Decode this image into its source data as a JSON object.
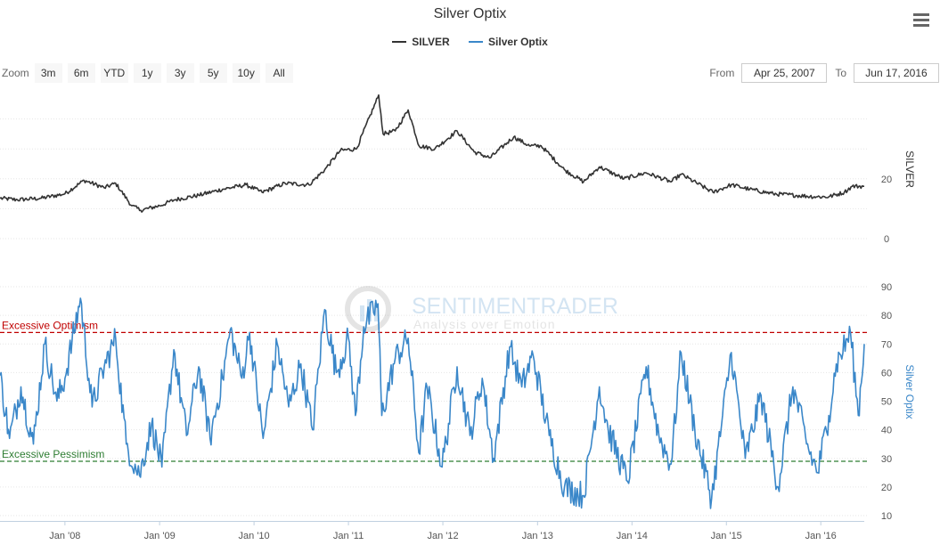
{
  "chart_title": "Silver Optix",
  "legend": [
    {
      "name": "SILVER",
      "color": "#333333"
    },
    {
      "name": "Silver Optix",
      "color": "#3a87c9"
    }
  ],
  "toolbar": {
    "zoom_label": "Zoom",
    "zoom_buttons": [
      "3m",
      "6m",
      "YTD",
      "1y",
      "3y",
      "5y",
      "10y",
      "All"
    ],
    "from_label": "From",
    "from_value": "Apr 25, 2007",
    "to_label": "To",
    "to_value": "Jun 17, 2016"
  },
  "watermark": {
    "name": "SENTIMENTRADER",
    "tagline": "Analysis over Emotion"
  },
  "chart_data": {
    "type": "line",
    "x_range": [
      "2007-04-25",
      "2016-06-17"
    ],
    "x_ticks": [
      "Jan '08",
      "Jan '09",
      "Jan '10",
      "Jan '11",
      "Jan '12",
      "Jan '13",
      "Jan '14",
      "Jan '15",
      "Jan '16"
    ],
    "panels": [
      {
        "axis_title": "SILVER",
        "y_ticks": [
          0,
          20
        ],
        "ylim": [
          0,
          50
        ],
        "series": [
          {
            "name": "SILVER",
            "color": "#333333",
            "points": [
              [
                "2007-04-25",
                13.5
              ],
              [
                "2007-07-01",
                13.0
              ],
              [
                "2007-10-01",
                13.5
              ],
              [
                "2008-01-01",
                15.0
              ],
              [
                "2008-03-15",
                19.5
              ],
              [
                "2008-06-01",
                17.0
              ],
              [
                "2008-07-15",
                18.5
              ],
              [
                "2008-09-15",
                11.0
              ],
              [
                "2008-10-20",
                9.5
              ],
              [
                "2009-01-01",
                11.0
              ],
              [
                "2009-03-01",
                13.0
              ],
              [
                "2009-06-01",
                14.5
              ],
              [
                "2009-09-01",
                16.5
              ],
              [
                "2009-12-01",
                18.0
              ],
              [
                "2010-02-01",
                15.5
              ],
              [
                "2010-05-01",
                18.5
              ],
              [
                "2010-08-01",
                18.0
              ],
              [
                "2010-10-01",
                23.0
              ],
              [
                "2010-12-01",
                29.5
              ],
              [
                "2011-02-01",
                30.0
              ],
              [
                "2011-04-28",
                48.0
              ],
              [
                "2011-05-15",
                35.0
              ],
              [
                "2011-07-01",
                36.0
              ],
              [
                "2011-08-20",
                43.0
              ],
              [
                "2011-10-01",
                31.0
              ],
              [
                "2011-12-01",
                30.0
              ],
              [
                "2012-02-25",
                36.0
              ],
              [
                "2012-05-01",
                29.0
              ],
              [
                "2012-07-01",
                27.0
              ],
              [
                "2012-10-01",
                34.0
              ],
              [
                "2012-12-01",
                31.0
              ],
              [
                "2013-01-15",
                31.0
              ],
              [
                "2013-04-15",
                23.0
              ],
              [
                "2013-06-28",
                19.0
              ],
              [
                "2013-08-28",
                24.0
              ],
              [
                "2013-12-01",
                20.0
              ],
              [
                "2014-02-25",
                22.0
              ],
              [
                "2014-06-01",
                19.0
              ],
              [
                "2014-07-10",
                21.5
              ],
              [
                "2014-11-10",
                15.5
              ],
              [
                "2015-01-20",
                18.0
              ],
              [
                "2015-04-01",
                16.5
              ],
              [
                "2015-07-01",
                15.0
              ],
              [
                "2015-12-15",
                14.0
              ],
              [
                "2016-02-01",
                14.0
              ],
              [
                "2016-04-01",
                15.5
              ],
              [
                "2016-05-01",
                17.5
              ],
              [
                "2016-06-17",
                17.5
              ]
            ]
          }
        ]
      },
      {
        "axis_title": "Silver Optix",
        "y_ticks": [
          10,
          20,
          30,
          40,
          50,
          60,
          70,
          80,
          90
        ],
        "ylim": [
          10,
          90
        ],
        "reference_lines": [
          {
            "label": "Excessive Optimism",
            "value": 74,
            "color": "#c00000"
          },
          {
            "label": "Excessive Pessimism",
            "value": 29,
            "color": "#2e7d32"
          }
        ],
        "series": [
          {
            "name": "Silver Optix",
            "color": "#3a87c9",
            "points": [
              [
                "2007-04-25",
                59
              ],
              [
                "2007-06-01",
                37
              ],
              [
                "2007-07-15",
                55
              ],
              [
                "2007-09-01",
                35
              ],
              [
                "2007-10-15",
                70
              ],
              [
                "2007-12-01",
                50
              ],
              [
                "2008-01-01",
                58
              ],
              [
                "2008-03-01",
                86
              ],
              [
                "2008-04-15",
                48
              ],
              [
                "2008-06-01",
                62
              ],
              [
                "2008-07-15",
                72
              ],
              [
                "2008-08-25",
                35
              ],
              [
                "2008-10-15",
                24
              ],
              [
                "2008-12-01",
                42
              ],
              [
                "2009-01-10",
                27
              ],
              [
                "2009-02-25",
                68
              ],
              [
                "2009-04-15",
                38
              ],
              [
                "2009-06-01",
                62
              ],
              [
                "2009-07-15",
                37
              ],
              [
                "2009-09-01",
                58
              ],
              [
                "2009-10-01",
                75
              ],
              [
                "2009-11-15",
                58
              ],
              [
                "2009-12-15",
                74
              ],
              [
                "2010-02-05",
                37
              ],
              [
                "2010-04-01",
                70
              ],
              [
                "2010-05-15",
                48
              ],
              [
                "2010-07-01",
                63
              ],
              [
                "2010-08-15",
                40
              ],
              [
                "2010-10-01",
                82
              ],
              [
                "2010-11-15",
                60
              ],
              [
                "2011-01-01",
                72
              ],
              [
                "2011-01-28",
                45
              ],
              [
                "2011-03-01",
                76
              ],
              [
                "2011-04-25",
                84
              ],
              [
                "2011-05-10",
                45
              ],
              [
                "2011-07-01",
                65
              ],
              [
                "2011-08-20",
                72
              ],
              [
                "2011-09-30",
                32
              ],
              [
                "2011-11-01",
                55
              ],
              [
                "2011-12-29",
                27
              ],
              [
                "2012-02-25",
                62
              ],
              [
                "2012-04-15",
                38
              ],
              [
                "2012-06-01",
                58
              ],
              [
                "2012-07-15",
                30
              ],
              [
                "2012-09-15",
                69
              ],
              [
                "2012-11-01",
                55
              ],
              [
                "2012-12-15",
                66
              ],
              [
                "2013-02-15",
                38
              ],
              [
                "2013-04-15",
                20
              ],
              [
                "2013-06-28",
                17
              ],
              [
                "2013-08-28",
                55
              ],
              [
                "2013-10-01",
                40
              ],
              [
                "2013-12-15",
                22
              ],
              [
                "2014-02-25",
                62
              ],
              [
                "2014-04-15",
                38
              ],
              [
                "2014-06-01",
                28
              ],
              [
                "2014-07-10",
                67
              ],
              [
                "2014-09-01",
                40
              ],
              [
                "2014-11-05",
                16
              ],
              [
                "2015-01-20",
                67
              ],
              [
                "2015-03-15",
                30
              ],
              [
                "2015-05-15",
                52
              ],
              [
                "2015-07-20",
                20
              ],
              [
                "2015-09-15",
                55
              ],
              [
                "2015-11-15",
                33
              ],
              [
                "2015-12-20",
                25
              ],
              [
                "2016-02-01",
                45
              ],
              [
                "2016-03-01",
                63
              ],
              [
                "2016-04-25",
                74
              ],
              [
                "2016-05-25",
                45
              ],
              [
                "2016-06-17",
                70
              ]
            ]
          }
        ]
      }
    ]
  }
}
